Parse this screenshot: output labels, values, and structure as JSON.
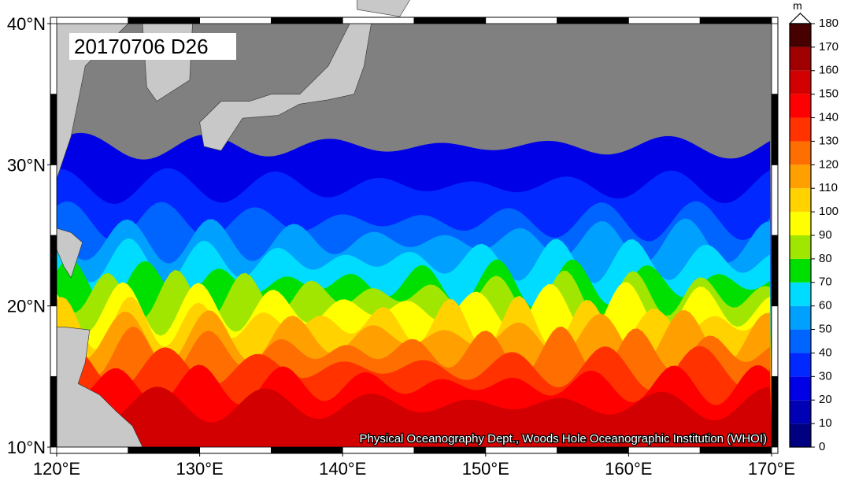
{
  "title": "20170706 D26",
  "credit": "Physical Oceanography Dept., Woods Hole Oceanographic Institution (WHOI)",
  "map": {
    "xlim": [
      120,
      170
    ],
    "ylim": [
      10,
      40
    ],
    "xticks": [
      {
        "value": 120,
        "label": "120°E"
      },
      {
        "value": 130,
        "label": "130°E"
      },
      {
        "value": 140,
        "label": "140°E"
      },
      {
        "value": 150,
        "label": "150°E"
      },
      {
        "value": 160,
        "label": "160°E"
      },
      {
        "value": 170,
        "label": "170°E"
      }
    ],
    "yticks": [
      {
        "value": 10,
        "label": "10°N"
      },
      {
        "value": 20,
        "label": "20°N"
      },
      {
        "value": 30,
        "label": "30°N"
      },
      {
        "value": 40,
        "label": "40°N"
      }
    ],
    "land_color": "#c8c8c8",
    "nodata_color": "#808080"
  },
  "colorbar": {
    "unit": "m",
    "ticks": [
      0,
      10,
      20,
      30,
      40,
      50,
      60,
      70,
      80,
      90,
      100,
      110,
      120,
      130,
      140,
      150,
      160,
      170,
      180
    ],
    "colors": [
      "#000080",
      "#0000b4",
      "#0000e6",
      "#0028ff",
      "#0064ff",
      "#00a0ff",
      "#00dcff",
      "#00e000",
      "#a0e600",
      "#ffff00",
      "#ffd200",
      "#ffa000",
      "#ff6e00",
      "#ff3200",
      "#ff0000",
      "#d20000",
      "#a00000",
      "#460000"
    ]
  }
}
